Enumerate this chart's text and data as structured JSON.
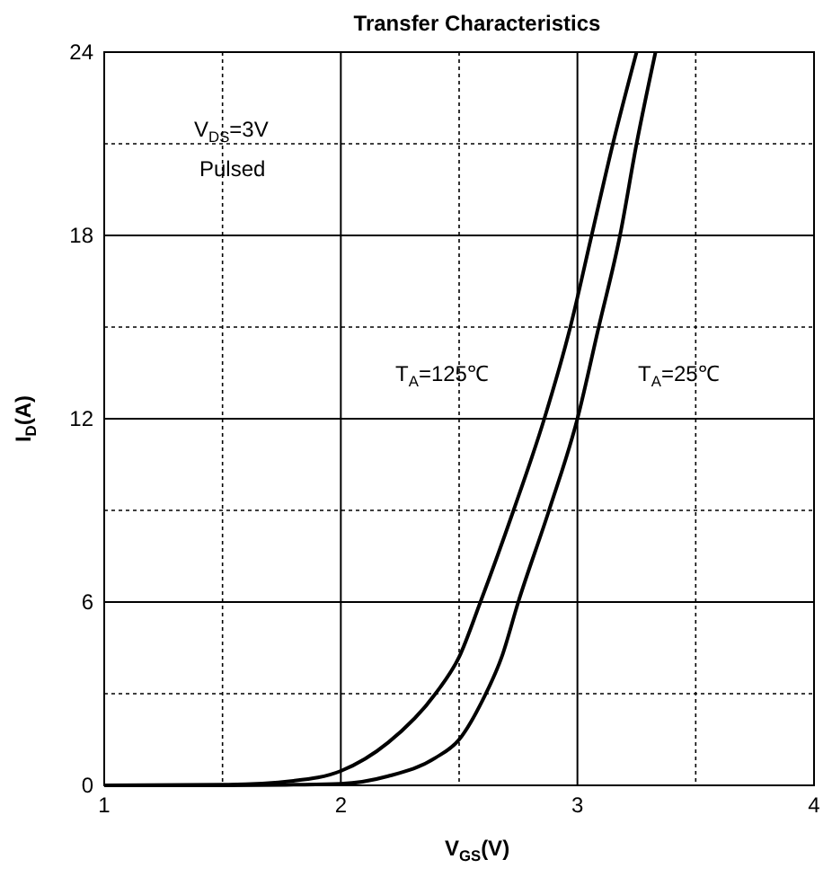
{
  "chart_data": {
    "type": "line",
    "title": "Transfer Characteristics",
    "xlabel": "V$_{GS}$(V)",
    "ylabel": "I$_{D}$(A)",
    "xlim": [
      1,
      4
    ],
    "ylim": [
      0,
      24
    ],
    "xticks": [
      1,
      {
        "value": 1.5,
        "label": null
      },
      2,
      {
        "value": 2.5,
        "label": null
      },
      3,
      {
        "value": 3.5,
        "label": null
      },
      4
    ],
    "yticks": [
      0,
      {
        "value": 3,
        "label": null
      },
      6,
      {
        "value": 9,
        "label": null
      },
      12,
      {
        "value": 15,
        "label": null
      },
      18,
      {
        "value": 21,
        "label": null
      },
      24
    ],
    "grid": true,
    "marker": "none",
    "line_style": "solid",
    "series": [
      {
        "color": "#000000",
        "x": [
          1,
          1.5,
          1.8,
          2,
          2.2,
          2.4,
          2.5,
          2.59,
          2.73,
          2.86,
          2.97,
          3.06,
          3.15,
          3.25
        ],
        "values": [
          0,
          0.02,
          0.15,
          0.47,
          1.4,
          3,
          4.2,
          6,
          9,
          12,
          15,
          18,
          21,
          24
        ]
      },
      {
        "color": "#000000",
        "x": [
          1,
          1.5,
          1.8,
          2,
          2.2,
          2.4,
          2.5,
          2.6,
          2.68,
          2.75,
          2.88,
          3,
          3.09,
          3.18,
          3.25,
          3.33
        ],
        "values": [
          0,
          0,
          0.02,
          0.05,
          0.3,
          0.9,
          1.5,
          2.8,
          4.2,
          6,
          9,
          12,
          15,
          18,
          21,
          24
        ]
      }
    ],
    "annotations": [
      "V$_{DS}$=3V",
      "Pulsed",
      "T$_{A}$=125℃",
      "T$_{A}$=25℃"
    ]
  }
}
